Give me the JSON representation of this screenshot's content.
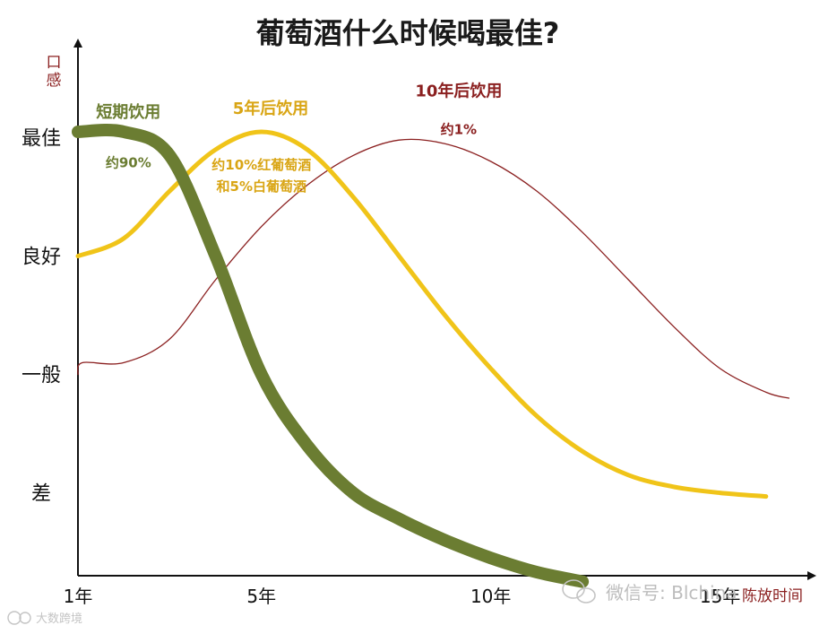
{
  "chart_data": {
    "type": "line",
    "title": "葡萄酒什么时候喝最佳?",
    "ylabel": "口感",
    "xlabel": "陈放时间",
    "x_ticks": [
      {
        "label": "1年",
        "x": 1
      },
      {
        "label": "5年",
        "x": 5
      },
      {
        "label": "10年",
        "x": 10
      },
      {
        "label": "15年",
        "x": 15
      }
    ],
    "y_ticks": [
      {
        "label": "最佳",
        "y": 4
      },
      {
        "label": "良好",
        "y": 3
      },
      {
        "label": "一般",
        "y": 2
      },
      {
        "label": "差",
        "y": 1
      }
    ],
    "xlim": [
      1,
      17
    ],
    "ylim": [
      0.3,
      4.8
    ],
    "grid": false,
    "series": [
      {
        "name": "10年后饮用",
        "share": "约1%",
        "color": "#8b2020",
        "width": 1.3,
        "points": [
          [
            1,
            2
          ],
          [
            1.1,
            2.1
          ],
          [
            2,
            2.1
          ],
          [
            3,
            2.3
          ],
          [
            4,
            2.8
          ],
          [
            5,
            3.25
          ],
          [
            6,
            3.6
          ],
          [
            7,
            3.85
          ],
          [
            8,
            3.98
          ],
          [
            9,
            3.95
          ],
          [
            10,
            3.8
          ],
          [
            11,
            3.55
          ],
          [
            12,
            3.2
          ],
          [
            13,
            2.8
          ],
          [
            14,
            2.4
          ],
          [
            15,
            2.05
          ],
          [
            16,
            1.85
          ],
          [
            16.5,
            1.8
          ]
        ]
      },
      {
        "name": "5年后饮用",
        "share_lines": [
          "约10%红葡萄酒",
          "和5%白葡萄酒"
        ],
        "color": "#f0c419",
        "width": 5,
        "points": [
          [
            1,
            3
          ],
          [
            2,
            3.15
          ],
          [
            3,
            3.55
          ],
          [
            4,
            3.9
          ],
          [
            5,
            4.05
          ],
          [
            6,
            3.9
          ],
          [
            7,
            3.5
          ],
          [
            8,
            3
          ],
          [
            9,
            2.5
          ],
          [
            10,
            2.05
          ],
          [
            11,
            1.65
          ],
          [
            12,
            1.35
          ],
          [
            13,
            1.15
          ],
          [
            14,
            1.05
          ],
          [
            15,
            1.0
          ],
          [
            16,
            0.97
          ]
        ]
      },
      {
        "name": "短期饮用",
        "share": "约90%",
        "color": "#6b7d32",
        "width": 14,
        "points": [
          [
            1,
            4.05
          ],
          [
            2,
            4.05
          ],
          [
            3,
            3.85
          ],
          [
            4,
            3
          ],
          [
            5,
            2
          ],
          [
            6,
            1.4
          ],
          [
            7,
            1.0
          ],
          [
            8,
            0.78
          ],
          [
            9,
            0.6
          ],
          [
            10,
            0.45
          ],
          [
            11,
            0.33
          ],
          [
            12,
            0.25
          ]
        ]
      }
    ]
  },
  "watermarks": {
    "wechat": "微信号: Blchina",
    "corner": "大数跨境"
  }
}
